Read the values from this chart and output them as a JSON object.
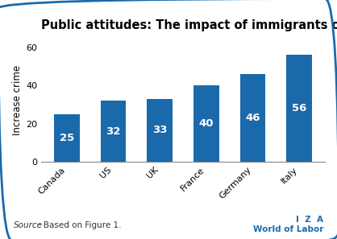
{
  "title": "Public attitudes: The impact of immigrants on crime (%)",
  "categories": [
    "Canada",
    "US",
    "UK",
    "France",
    "Germany",
    "Italy"
  ],
  "values": [
    25,
    32,
    33,
    40,
    46,
    56
  ],
  "bar_color": "#1a6aab",
  "ylabel": "Increase crime",
  "ylim": [
    0,
    65
  ],
  "yticks": [
    0,
    20,
    40,
    60
  ],
  "label_color": "#ffffff",
  "label_fontsize": 9.5,
  "title_fontsize": 10.5,
  "ylabel_fontsize": 8.5,
  "tick_fontsize": 8,
  "source_text_italic": "Source",
  "source_text_normal": ": Based on Figure 1.",
  "watermark_line1": "I  Z  A",
  "watermark_line2": "World of Labor",
  "background_color": "#ffffff",
  "border_color": "#1a6aab"
}
